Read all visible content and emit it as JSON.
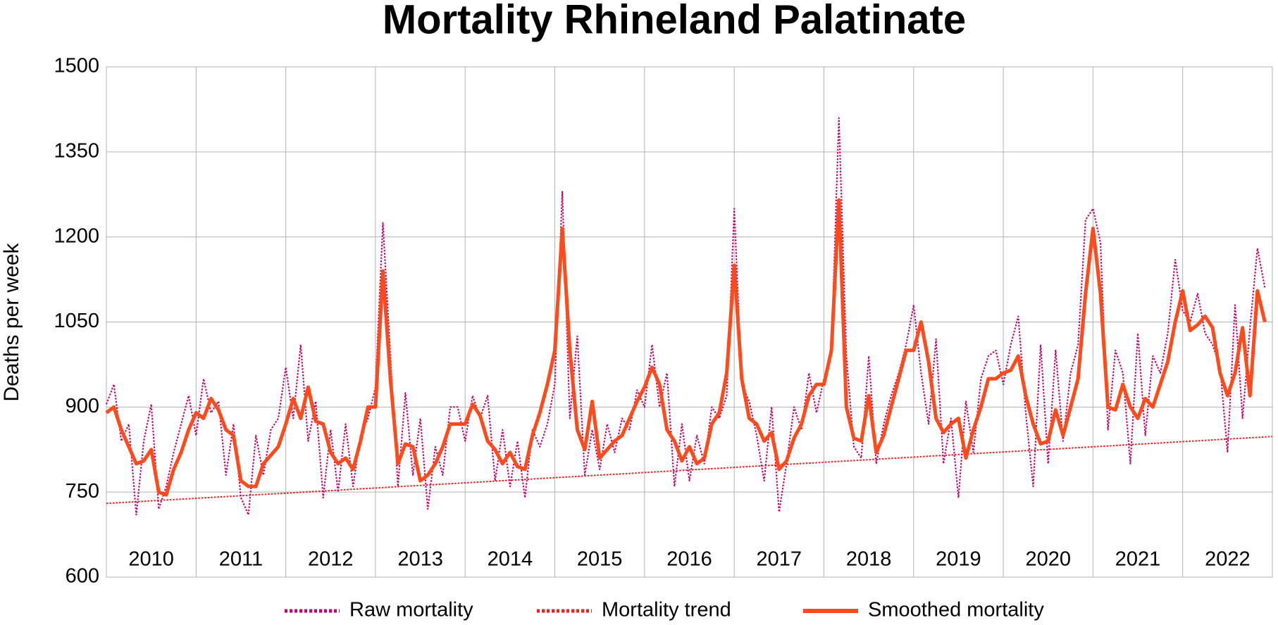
{
  "chart_data": {
    "type": "line",
    "title": "Mortality Rhineland Palatinate",
    "y_label": "Deaths per week",
    "xlim": [
      2010,
      2023
    ],
    "xticks": [
      2010,
      2011,
      2012,
      2013,
      2014,
      2015,
      2016,
      2017,
      2018,
      2019,
      2020,
      2021,
      2022
    ],
    "ylim": [
      600,
      1500
    ],
    "yticks": [
      600,
      750,
      900,
      1050,
      1200,
      1350,
      1500
    ],
    "grid": true,
    "legend": "bottom",
    "series": [
      {
        "name": "Raw mortality",
        "color": "#c8006e",
        "style": "dotted",
        "width": 2,
        "values": [
          905,
          940,
          840,
          870,
          710,
          840,
          905,
          720,
          760,
          820,
          870,
          920,
          850,
          950,
          890,
          910,
          780,
          870,
          740,
          710,
          850,
          780,
          860,
          880,
          970,
          880,
          1010,
          840,
          910,
          740,
          860,
          750,
          870,
          760,
          850,
          880,
          935,
          1225,
          990,
          760,
          925,
          780,
          880,
          720,
          830,
          780,
          900,
          900,
          840,
          920,
          880,
          920,
          770,
          860,
          760,
          840,
          740,
          860,
          830,
          870,
          940,
          1280,
          880,
          1025,
          780,
          860,
          790,
          870,
          820,
          880,
          860,
          930,
          900,
          1010,
          900,
          960,
          760,
          870,
          770,
          850,
          800,
          900,
          880,
          920,
          1250,
          940,
          910,
          850,
          770,
          900,
          715,
          800,
          900,
          860,
          960,
          890,
          950,
          1000,
          1410,
          990,
          830,
          810,
          990,
          800,
          870,
          920,
          960,
          1010,
          1080,
          960,
          870,
          1020,
          800,
          880,
          740,
          910,
          820,
          950,
          990,
          1000,
          940,
          1010,
          1060,
          890,
          760,
          1010,
          800,
          1000,
          840,
          960,
          1010,
          1230,
          1250,
          1190,
          860,
          1000,
          960,
          800,
          1030,
          850,
          990,
          960,
          1030,
          1160,
          1070,
          1050,
          1100,
          1030,
          1010,
          970,
          820,
          1080,
          880,
          1040,
          1180,
          1110
        ]
      },
      {
        "name": "Mortality trend",
        "color": "#ff1a1a",
        "style": "dotted",
        "width": 2,
        "x": [
          2010,
          2023
        ],
        "values": [
          730,
          848
        ]
      },
      {
        "name": "Smoothed mortality",
        "color": "#ff4a1c",
        "style": "solid",
        "width": 5,
        "values": [
          890,
          900,
          860,
          830,
          800,
          805,
          825,
          750,
          745,
          790,
          820,
          860,
          890,
          880,
          915,
          895,
          860,
          850,
          770,
          760,
          760,
          800,
          815,
          830,
          870,
          915,
          880,
          935,
          875,
          870,
          820,
          800,
          810,
          790,
          840,
          900,
          900,
          1140,
          950,
          800,
          835,
          830,
          770,
          780,
          800,
          830,
          870,
          870,
          870,
          905,
          885,
          840,
          825,
          800,
          820,
          795,
          790,
          850,
          890,
          940,
          1000,
          1215,
          1000,
          860,
          825,
          910,
          810,
          825,
          840,
          850,
          880,
          910,
          935,
          970,
          940,
          860,
          840,
          805,
          830,
          800,
          810,
          870,
          890,
          960,
          1150,
          950,
          880,
          870,
          840,
          855,
          790,
          805,
          845,
          870,
          920,
          940,
          940,
          1000,
          1265,
          900,
          845,
          840,
          920,
          820,
          850,
          900,
          950,
          1000,
          1000,
          1050,
          980,
          880,
          855,
          870,
          880,
          810,
          860,
          900,
          950,
          950,
          960,
          965,
          990,
          920,
          870,
          835,
          840,
          895,
          850,
          900,
          950,
          1100,
          1215,
          1100,
          900,
          895,
          940,
          900,
          880,
          915,
          900,
          940,
          980,
          1050,
          1105,
          1035,
          1045,
          1060,
          1040,
          960,
          920,
          960,
          1040,
          920,
          1105,
          1050
        ]
      }
    ]
  }
}
